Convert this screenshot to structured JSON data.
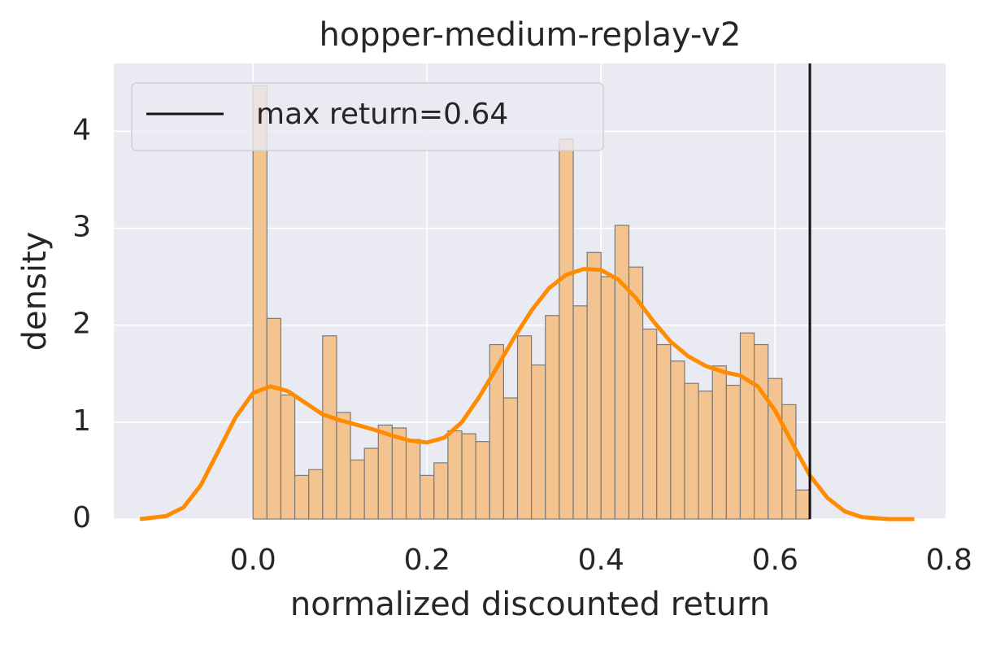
{
  "chart_data": {
    "type": "histogram",
    "title": "hopper-medium-replay-v2",
    "xlabel": "normalized discounted return",
    "ylabel": "density",
    "bins": [
      0,
      0.016,
      0.032,
      0.048,
      0.064,
      0.08,
      0.096,
      0.112,
      0.128,
      0.144,
      0.16,
      0.176,
      0.192,
      0.208,
      0.224,
      0.24,
      0.256,
      0.272,
      0.288,
      0.304,
      0.32,
      0.336,
      0.352,
      0.368,
      0.384,
      0.4,
      0.416,
      0.432,
      0.448,
      0.464,
      0.48,
      0.496,
      0.512,
      0.528,
      0.544,
      0.56,
      0.576,
      0.592,
      0.608,
      0.624,
      0.64
    ],
    "counts": [
      4.47,
      2.07,
      1.28,
      0.45,
      0.51,
      1.89,
      1.1,
      0.61,
      0.73,
      0.97,
      0.94,
      0.82,
      0.45,
      0.58,
      0.91,
      0.88,
      0.8,
      1.8,
      1.25,
      1.89,
      1.59,
      2.1,
      3.92,
      2.2,
      2.75,
      2.5,
      3.03,
      2.6,
      1.96,
      1.8,
      1.63,
      1.4,
      1.32,
      1.58,
      1.38,
      1.92,
      1.8,
      1.45,
      1.18,
      0.3
    ],
    "color": "#f3c390",
    "kde": {
      "color": "#ff8c00",
      "x": [
        -0.13,
        -0.1,
        -0.08,
        -0.06,
        -0.04,
        -0.02,
        0.0,
        0.02,
        0.04,
        0.06,
        0.08,
        0.1,
        0.12,
        0.14,
        0.16,
        0.18,
        0.2,
        0.22,
        0.24,
        0.26,
        0.28,
        0.3,
        0.32,
        0.34,
        0.36,
        0.38,
        0.4,
        0.42,
        0.44,
        0.46,
        0.48,
        0.5,
        0.52,
        0.54,
        0.56,
        0.58,
        0.6,
        0.62,
        0.64,
        0.66,
        0.68,
        0.7,
        0.73,
        0.76
      ],
      "values": [
        0,
        0.03,
        0.12,
        0.35,
        0.7,
        1.05,
        1.3,
        1.37,
        1.32,
        1.2,
        1.08,
        1.02,
        0.97,
        0.92,
        0.86,
        0.81,
        0.79,
        0.84,
        1.0,
        1.26,
        1.56,
        1.87,
        2.15,
        2.38,
        2.52,
        2.58,
        2.57,
        2.47,
        2.28,
        2.04,
        1.83,
        1.68,
        1.58,
        1.52,
        1.48,
        1.37,
        1.12,
        0.78,
        0.45,
        0.22,
        0.08,
        0.02,
        0,
        0
      ]
    },
    "vline": {
      "x": 0.64,
      "label": "max return=0.64",
      "color": "#111111"
    },
    "xlim": [
      -0.16,
      0.796
    ],
    "ylim": [
      0,
      4.7
    ],
    "xticks": [
      {
        "value": 0,
        "label": "0.0"
      },
      0.2,
      0.4,
      0.6,
      0.8
    ],
    "yticks": [
      0,
      1,
      2,
      3,
      4
    ],
    "grid": true,
    "legend": "upper left"
  }
}
